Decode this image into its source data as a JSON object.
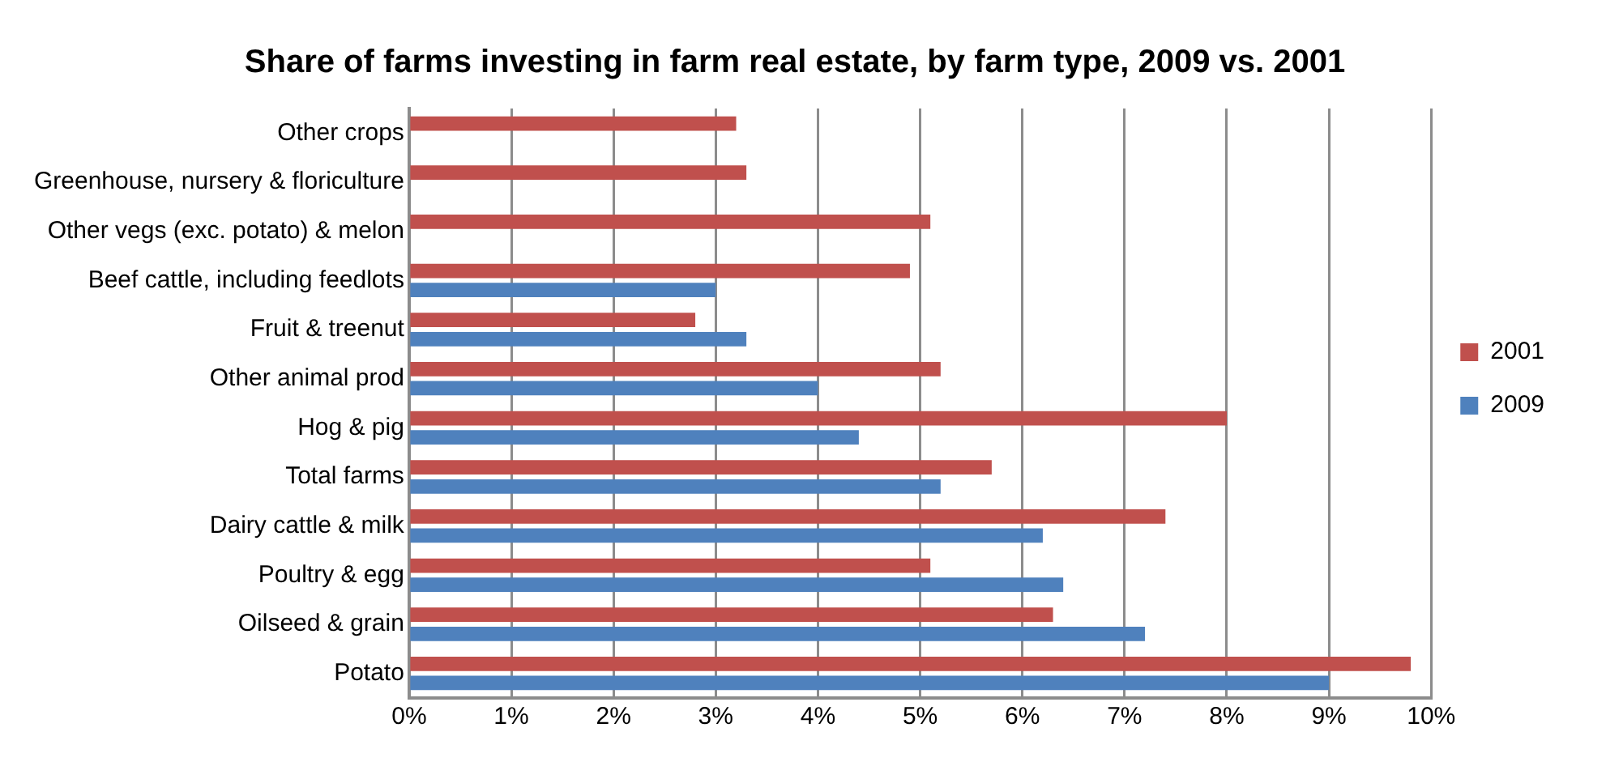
{
  "chart_data": {
    "type": "bar",
    "orientation": "horizontal",
    "title": "Share of farms investing in farm real estate, by farm type, 2009 vs. 2001",
    "categories": [
      "Other crops",
      "Greenhouse, nursery & floriculture",
      "Other vegs (exc. potato) & melon",
      "Beef cattle, including feedlots",
      "Fruit & treenut",
      "Other animal prod",
      "Hog & pig",
      "Total farms",
      "Dairy cattle & milk",
      "Poultry & egg",
      "Oilseed & grain",
      "Potato"
    ],
    "series": [
      {
        "name": "2001",
        "color": "#c0504d",
        "values": [
          3.2,
          3.3,
          5.1,
          4.9,
          2.8,
          5.2,
          8.0,
          5.7,
          7.4,
          5.1,
          6.3,
          9.8
        ]
      },
      {
        "name": "2009",
        "color": "#4f81bd",
        "values": [
          null,
          null,
          null,
          3.0,
          3.3,
          4.0,
          4.4,
          5.2,
          6.2,
          6.4,
          7.2,
          9.0
        ]
      }
    ],
    "xlim": [
      0,
      10
    ],
    "xticks": [
      {
        "value": 0,
        "label": "0%"
      },
      {
        "value": 1,
        "label": "1%"
      },
      {
        "value": 2,
        "label": "2%"
      },
      {
        "value": 3,
        "label": "3%"
      },
      {
        "value": 4,
        "label": "4%"
      },
      {
        "value": 5,
        "label": "5%"
      },
      {
        "value": 6,
        "label": "6%"
      },
      {
        "value": 7,
        "label": "7%"
      },
      {
        "value": 8,
        "label": "8%"
      },
      {
        "value": 9,
        "label": "9%"
      },
      {
        "value": 10,
        "label": "10%"
      }
    ],
    "grid": "x",
    "legend": "right"
  }
}
